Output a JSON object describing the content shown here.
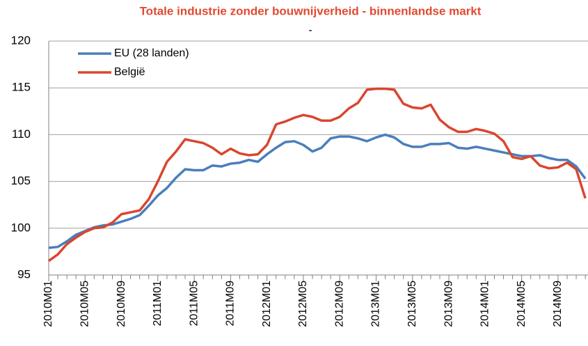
{
  "chart_data": {
    "type": "line",
    "title": "Totale industrie zonder bouwnijverheid - binnenlandse markt",
    "subtitle": "-",
    "title_color": "#e2492f",
    "categories": [
      "2010M01",
      null,
      null,
      null,
      "2010M05",
      null,
      null,
      null,
      "2010M09",
      null,
      null,
      null,
      "2011M01",
      null,
      null,
      null,
      "2011M05",
      null,
      null,
      null,
      "2011M09",
      null,
      null,
      null,
      "2012M01",
      null,
      null,
      null,
      "2012M05",
      null,
      null,
      null,
      "2012M09",
      null,
      null,
      null,
      "2013M01",
      null,
      null,
      null,
      "2013M05",
      null,
      null,
      null,
      "2013M09",
      null,
      null,
      null,
      "2014M01",
      null,
      null,
      null,
      "2014M05",
      null,
      null,
      null,
      "2014M09",
      null,
      null,
      null
    ],
    "series": [
      {
        "name": "EU (28 landen)",
        "color": "#4a7ebb",
        "values": [
          97.9,
          98.0,
          98.6,
          99.3,
          99.7,
          100.1,
          100.3,
          100.4,
          100.7,
          101.0,
          101.4,
          102.4,
          103.5,
          104.3,
          105.4,
          106.3,
          106.2,
          106.2,
          106.7,
          106.6,
          106.9,
          107.0,
          107.3,
          107.1,
          107.9,
          108.6,
          109.2,
          109.3,
          108.9,
          108.2,
          108.6,
          109.6,
          109.8,
          109.8,
          109.6,
          109.3,
          109.7,
          110.0,
          109.7,
          109.0,
          108.7,
          108.7,
          109.0,
          109.0,
          109.1,
          108.6,
          108.5,
          108.7,
          108.5,
          108.3,
          108.1,
          107.9,
          107.7,
          107.7,
          107.8,
          107.5,
          107.3,
          107.3,
          106.6,
          105.3
        ]
      },
      {
        "name": "België",
        "color": "#d9462e",
        "values": [
          96.5,
          97.2,
          98.3,
          99.0,
          99.6,
          100.0,
          100.1,
          100.6,
          101.5,
          101.7,
          101.9,
          103.1,
          105.0,
          107.1,
          108.2,
          109.5,
          109.3,
          109.1,
          108.6,
          107.9,
          108.5,
          108.0,
          107.8,
          107.9,
          108.9,
          111.1,
          111.4,
          111.8,
          112.1,
          111.9,
          111.5,
          111.5,
          111.9,
          112.8,
          113.4,
          114.8,
          114.9,
          114.9,
          114.8,
          113.3,
          112.9,
          112.8,
          113.2,
          111.6,
          110.8,
          110.3,
          110.3,
          110.6,
          110.4,
          110.1,
          109.3,
          107.6,
          107.4,
          107.7,
          106.7,
          106.4,
          106.5,
          107.0,
          106.3,
          103.2
        ]
      }
    ],
    "ylim": [
      95,
      120
    ],
    "yticks": [
      95,
      100,
      105,
      110,
      115,
      120
    ],
    "grid": true,
    "legend": "upper left"
  }
}
